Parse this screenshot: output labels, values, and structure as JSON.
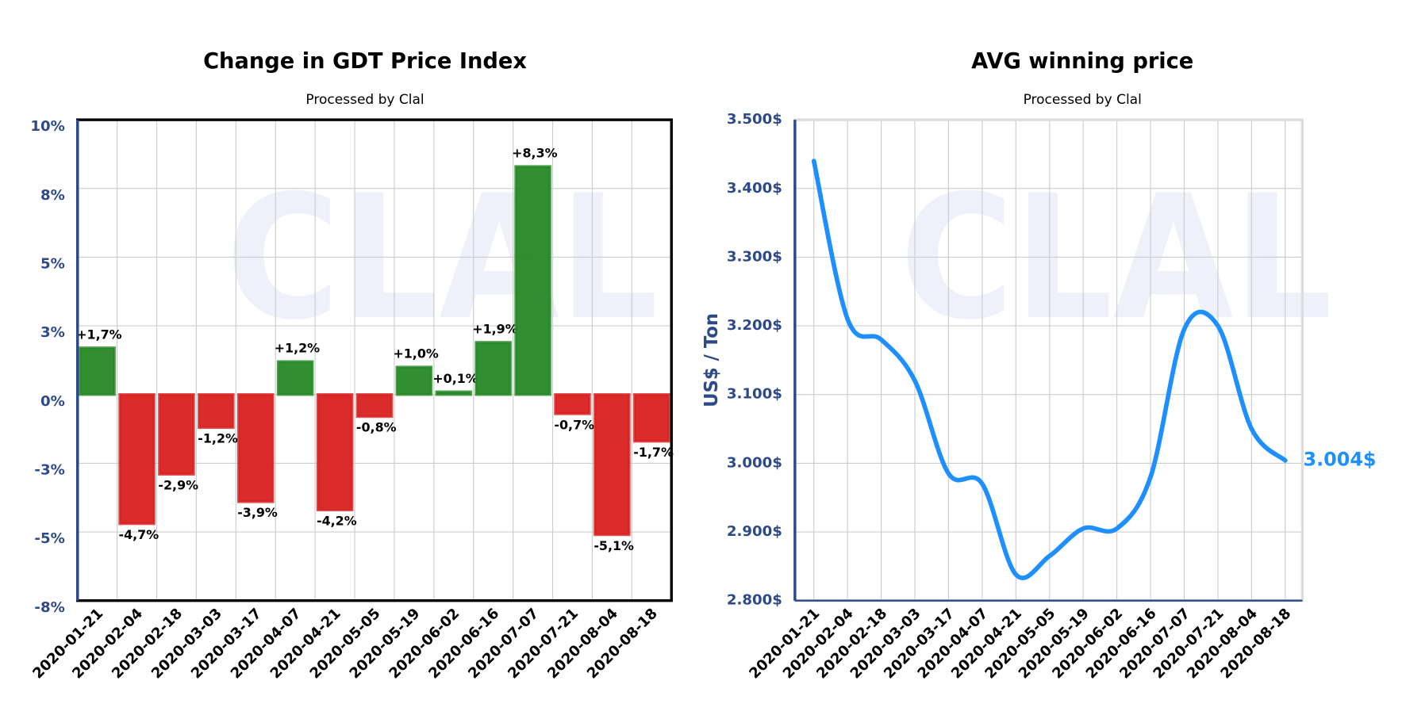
{
  "chart_data": [
    {
      "type": "bar",
      "title": "Change in GDT Price Index",
      "subtitle": "Processed by Clal",
      "watermark": "CLAL",
      "categories": [
        "2020-01-21",
        "2020-02-04",
        "2020-02-18",
        "2020-03-03",
        "2020-03-17",
        "2020-04-07",
        "2020-04-21",
        "2020-05-05",
        "2020-05-19",
        "2020-06-02",
        "2020-06-16",
        "2020-07-07",
        "2020-07-21",
        "2020-08-04",
        "2020-08-18"
      ],
      "values": [
        1.7,
        -4.7,
        -2.9,
        -1.2,
        -3.9,
        1.2,
        -4.2,
        -0.8,
        1.0,
        0.1,
        1.9,
        8.3,
        -0.7,
        -5.1,
        -1.7
      ],
      "value_labels": [
        "+1,7%",
        "-4,7%",
        "-2,9%",
        "-1,2%",
        "-3,9%",
        "+1,2%",
        "-4,2%",
        "-0,8%",
        "+1,0%",
        "+0,1%",
        "+1,9%",
        "+8,3%",
        "-0,7%",
        "-5,1%",
        "-1,7%"
      ],
      "positive_color": "#2ca02c",
      "negative_color": "#ff2626",
      "ylim": [
        -7.5,
        10
      ],
      "yticks": [
        {
          "value": 10,
          "label": "10%"
        },
        {
          "value": 7.5,
          "label": "8%"
        },
        {
          "value": 5,
          "label": "5%"
        },
        {
          "value": 2.5,
          "label": "3%"
        },
        {
          "value": 0,
          "label": "0%"
        },
        {
          "value": -2.5,
          "label": "-3%"
        },
        {
          "value": -5,
          "label": "-5%"
        },
        {
          "value": -7.5,
          "label": "-8%"
        }
      ],
      "grid": true
    },
    {
      "type": "line",
      "title": "AVG winning price",
      "subtitle": "Processed by Clal",
      "watermark": "CLAL",
      "y_label": "US$ / Ton",
      "categories": [
        "2020-01-21",
        "2020-02-04",
        "2020-02-18",
        "2020-03-03",
        "2020-03-17",
        "2020-04-07",
        "2020-04-21",
        "2020-05-05",
        "2020-05-19",
        "2020-06-02",
        "2020-06-16",
        "2020-07-07",
        "2020-07-21",
        "2020-08-04",
        "2020-08-18"
      ],
      "values": [
        3440,
        3210,
        3180,
        3120,
        2985,
        2970,
        2838,
        2865,
        2905,
        2905,
        2980,
        3195,
        3200,
        3050,
        3004
      ],
      "last_label": "3.004$",
      "color": "#1e8fff",
      "ylim": [
        2800,
        3500
      ],
      "yticks": [
        {
          "value": 2800,
          "label": "2.800$"
        },
        {
          "value": 2900,
          "label": "2.900$"
        },
        {
          "value": 3000,
          "label": "3.000$"
        },
        {
          "value": 3100,
          "label": "3.100$"
        },
        {
          "value": 3200,
          "label": "3.200$"
        },
        {
          "value": 3300,
          "label": "3.300$"
        },
        {
          "value": 3400,
          "label": "3.400$"
        },
        {
          "value": 3500,
          "label": "3.500$"
        }
      ],
      "grid": true
    }
  ]
}
